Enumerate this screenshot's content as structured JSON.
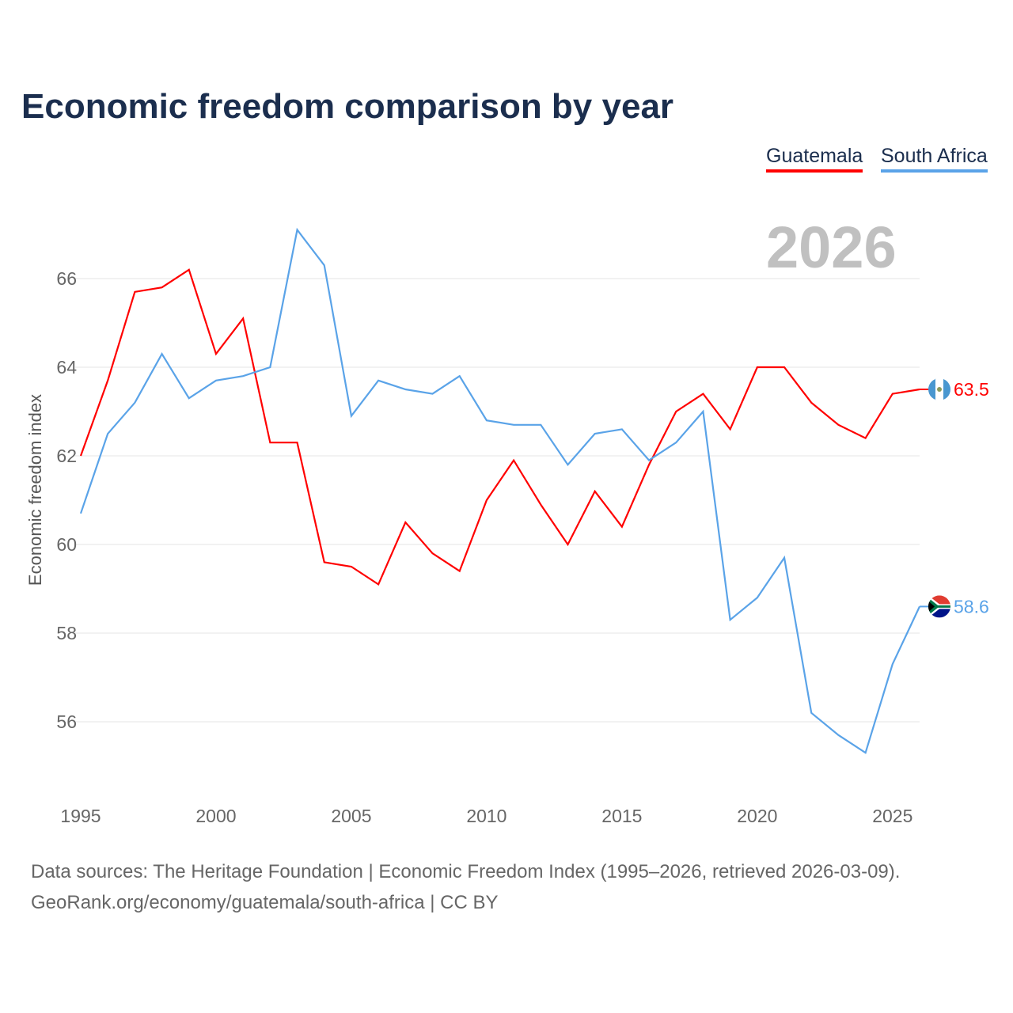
{
  "chart_data": {
    "type": "line",
    "title": "Economic freedom comparison by year",
    "xlabel": "",
    "ylabel": "Economic freedom index",
    "year_label": "2026",
    "xlim": [
      1995,
      2026
    ],
    "ylim": [
      54.8,
      67.5
    ],
    "x_ticks": [
      1995,
      2000,
      2005,
      2010,
      2015,
      2020,
      2025
    ],
    "y_ticks": [
      56,
      58,
      60,
      62,
      64,
      66
    ],
    "grid": true,
    "legend_position": "top-right",
    "x": [
      1995,
      1996,
      1997,
      1998,
      1999,
      2000,
      2001,
      2002,
      2003,
      2004,
      2005,
      2006,
      2007,
      2008,
      2009,
      2010,
      2011,
      2012,
      2013,
      2014,
      2015,
      2016,
      2017,
      2018,
      2019,
      2020,
      2021,
      2022,
      2023,
      2024,
      2025,
      2026
    ],
    "series": [
      {
        "name": "Guatemala",
        "color": "#ff0000",
        "end_label": "63.5",
        "values": [
          62.0,
          63.7,
          65.7,
          65.8,
          66.2,
          64.3,
          65.1,
          62.3,
          62.3,
          59.6,
          59.5,
          59.1,
          60.5,
          59.8,
          59.4,
          61.0,
          61.9,
          60.9,
          60.0,
          61.2,
          60.4,
          61.8,
          63.0,
          63.4,
          62.6,
          64.0,
          64.0,
          63.2,
          62.7,
          62.4,
          63.4,
          63.5
        ]
      },
      {
        "name": "South Africa",
        "color": "#5aa3e8",
        "end_label": "58.6",
        "values": [
          60.7,
          62.5,
          63.2,
          64.3,
          63.3,
          63.7,
          63.8,
          64.0,
          67.1,
          66.3,
          62.9,
          63.7,
          63.5,
          63.4,
          63.8,
          62.8,
          62.7,
          62.7,
          61.8,
          62.5,
          62.6,
          61.9,
          62.3,
          63.0,
          58.3,
          58.8,
          59.7,
          56.2,
          55.7,
          55.3,
          57.3,
          58.6
        ]
      }
    ]
  },
  "footer": {
    "line1": "Data sources: The Heritage Foundation | Economic Freedom Index (1995–2026, retrieved 2026-03-09).",
    "line2": "GeoRank.org/economy/guatemala/south-africa | CC BY"
  }
}
